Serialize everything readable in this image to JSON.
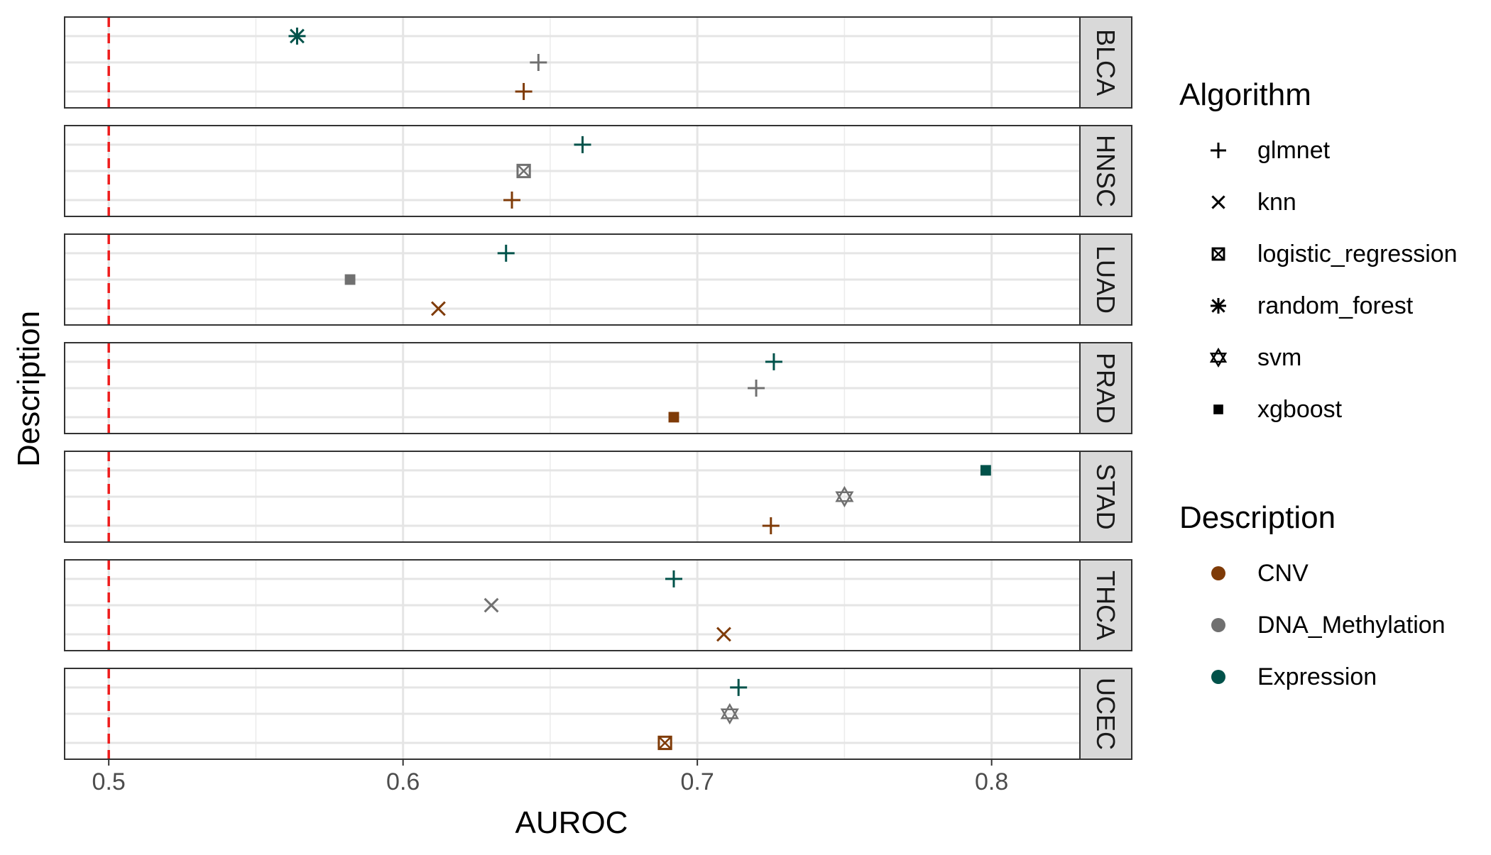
{
  "chart_data": {
    "type": "scatter",
    "facet_by": "cancer_type",
    "xlabel": "AUROC",
    "ylabel": "Description",
    "xlim": [
      0.485,
      0.83
    ],
    "x_ticks": [
      0.5,
      0.6,
      0.7,
      0.8
    ],
    "x_tick_labels": [
      "0.5",
      "0.6",
      "0.7",
      "0.8"
    ],
    "reference_line": {
      "x": 0.5,
      "color": "#ee1c1c",
      "style": "dashed"
    },
    "grid": true,
    "facet_strip_position": "right",
    "legend_placement": "right",
    "description_order": [
      "Expression",
      "DNA_Methylation",
      "CNV"
    ],
    "legends": {
      "algorithm": {
        "title": "Algorithm",
        "entries": [
          {
            "label": "glmnet",
            "shape": "plus"
          },
          {
            "label": "knn",
            "shape": "cross"
          },
          {
            "label": "logistic_regression",
            "shape": "boxcross"
          },
          {
            "label": "random_forest",
            "shape": "asterisk"
          },
          {
            "label": "svm",
            "shape": "star-of-david"
          },
          {
            "label": "xgboost",
            "shape": "square"
          }
        ]
      },
      "description": {
        "title": "Description",
        "entries": [
          {
            "label": "CNV",
            "color": "#7f3b08"
          },
          {
            "label": "DNA_Methylation",
            "color": "#707070"
          },
          {
            "label": "Expression",
            "color": "#01524a"
          }
        ]
      }
    },
    "facets": [
      {
        "name": "BLCA",
        "points": [
          {
            "description": "Expression",
            "algorithm": "random_forest",
            "auroc": 0.564
          },
          {
            "description": "DNA_Methylation",
            "algorithm": "glmnet",
            "auroc": 0.646
          },
          {
            "description": "CNV",
            "algorithm": "glmnet",
            "auroc": 0.641
          }
        ]
      },
      {
        "name": "HNSC",
        "points": [
          {
            "description": "Expression",
            "algorithm": "glmnet",
            "auroc": 0.661
          },
          {
            "description": "DNA_Methylation",
            "algorithm": "logistic_regression",
            "auroc": 0.641
          },
          {
            "description": "CNV",
            "algorithm": "glmnet",
            "auroc": 0.637
          }
        ]
      },
      {
        "name": "LUAD",
        "points": [
          {
            "description": "Expression",
            "algorithm": "glmnet",
            "auroc": 0.635
          },
          {
            "description": "DNA_Methylation",
            "algorithm": "xgboost",
            "auroc": 0.582
          },
          {
            "description": "CNV",
            "algorithm": "knn",
            "auroc": 0.612
          }
        ]
      },
      {
        "name": "PRAD",
        "points": [
          {
            "description": "Expression",
            "algorithm": "glmnet",
            "auroc": 0.726
          },
          {
            "description": "DNA_Methylation",
            "algorithm": "glmnet",
            "auroc": 0.72
          },
          {
            "description": "CNV",
            "algorithm": "xgboost",
            "auroc": 0.692
          }
        ]
      },
      {
        "name": "STAD",
        "points": [
          {
            "description": "Expression",
            "algorithm": "xgboost",
            "auroc": 0.798
          },
          {
            "description": "DNA_Methylation",
            "algorithm": "svm",
            "auroc": 0.75
          },
          {
            "description": "CNV",
            "algorithm": "glmnet",
            "auroc": 0.725
          }
        ]
      },
      {
        "name": "THCA",
        "points": [
          {
            "description": "Expression",
            "algorithm": "glmnet",
            "auroc": 0.692
          },
          {
            "description": "DNA_Methylation",
            "algorithm": "knn",
            "auroc": 0.63
          },
          {
            "description": "CNV",
            "algorithm": "knn",
            "auroc": 0.709
          }
        ]
      },
      {
        "name": "UCEC",
        "points": [
          {
            "description": "Expression",
            "algorithm": "glmnet",
            "auroc": 0.714
          },
          {
            "description": "DNA_Methylation",
            "algorithm": "svm",
            "auroc": 0.711
          },
          {
            "description": "CNV",
            "algorithm": "logistic_regression",
            "auroc": 0.689
          }
        ]
      }
    ]
  }
}
